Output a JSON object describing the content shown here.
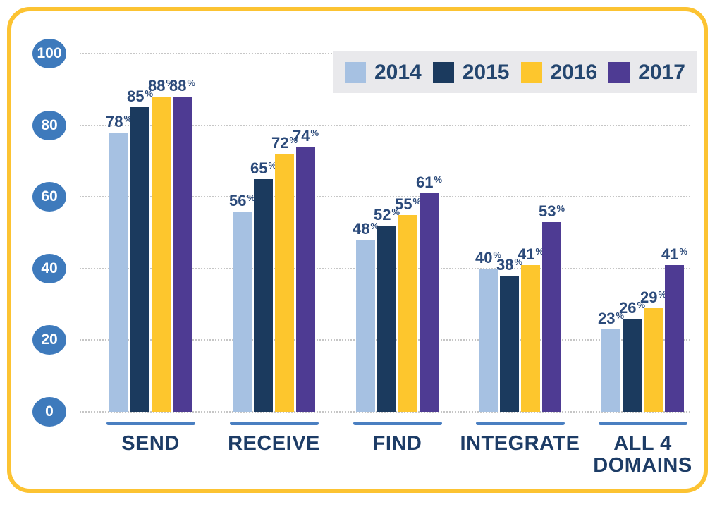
{
  "chart_data": {
    "type": "bar",
    "categories": [
      "SEND",
      "RECEIVE",
      "FIND",
      "INTEGRATE",
      "ALL 4 DOMAINS"
    ],
    "series": [
      {
        "name": "2014",
        "color": "#a6c1e2",
        "values": [
          78,
          56,
          48,
          40,
          23
        ]
      },
      {
        "name": "2015",
        "color": "#1b3a5e",
        "values": [
          85,
          65,
          52,
          38,
          26
        ]
      },
      {
        "name": "2016",
        "color": "#fdc62d",
        "values": [
          88,
          72,
          55,
          41,
          29
        ]
      },
      {
        "name": "2017",
        "color": "#4e3b93",
        "values": [
          88,
          74,
          61,
          53,
          41
        ]
      },
      {
        "name": "_note",
        "color": "",
        "values": []
      }
    ],
    "unit": "%",
    "yticks": [
      0,
      20,
      40,
      60,
      80,
      100
    ],
    "ylim": [
      0,
      100
    ],
    "title": "",
    "xlabel": "",
    "ylabel": "",
    "grid": "dotted horizontal",
    "legend_position": "top-right",
    "data_labels": "value with superscript percent above each bar"
  },
  "colors": {
    "border": "#fcc332",
    "axis_badge": "#3e7abc",
    "category_underline": "#4a7fc1",
    "legend_background": "#e9e9ec",
    "label_text": "#2b4a7a",
    "category_text": "#1d3c66",
    "gridline": "#c6c6c6"
  }
}
